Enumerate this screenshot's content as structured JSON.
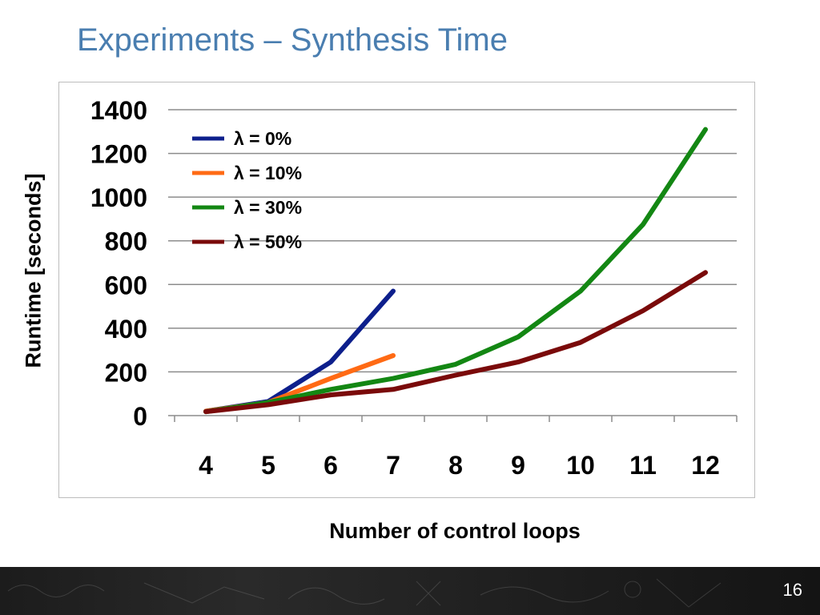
{
  "slide": {
    "title": "Experiments – Synthesis Time",
    "page_number": "16"
  },
  "chart_data": {
    "type": "line",
    "xlabel": "Number of control loops",
    "ylabel": "Runtime [seconds]",
    "ylim": [
      0,
      1400
    ],
    "y_ticks": [
      0,
      200,
      400,
      600,
      800,
      1000,
      1200,
      1400
    ],
    "categories": [
      "4",
      "5",
      "6",
      "7",
      "8",
      "9",
      "10",
      "11",
      "12"
    ],
    "grid": true,
    "legend_position": "top-left",
    "series": [
      {
        "name": "λ = 0%",
        "color": "#0d1f8c",
        "values": [
          20,
          65,
          245,
          570,
          null,
          null,
          null,
          null,
          null
        ]
      },
      {
        "name": "λ = 10%",
        "color": "#ff6a14",
        "values": [
          20,
          60,
          170,
          275,
          null,
          null,
          null,
          null,
          null
        ]
      },
      {
        "name": "λ = 30%",
        "color": "#138713",
        "values": [
          18,
          60,
          120,
          170,
          235,
          360,
          570,
          875,
          1310
        ]
      },
      {
        "name": "λ = 50%",
        "color": "#7a0a0a",
        "values": [
          18,
          50,
          95,
          120,
          185,
          245,
          335,
          480,
          655
        ]
      }
    ]
  }
}
